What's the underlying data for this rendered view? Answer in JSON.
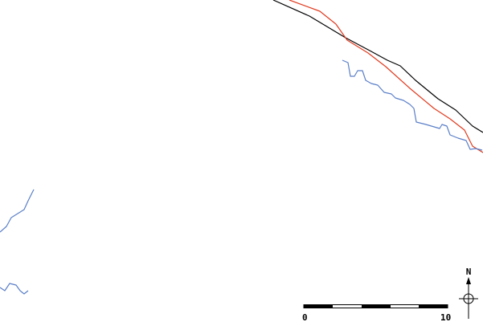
{
  "north_label": "N",
  "scale_bar": {
    "ticks": [
      0,
      10
    ]
  }
}
